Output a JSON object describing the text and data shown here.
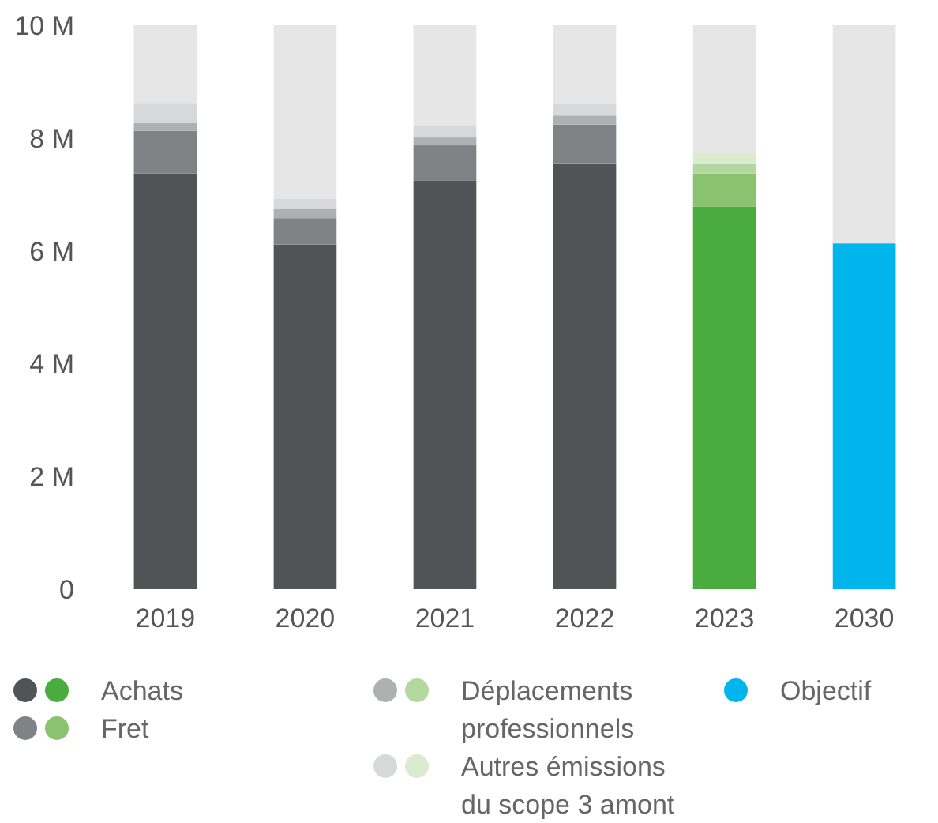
{
  "chart_data": {
    "type": "bar",
    "stacked": true,
    "categories": [
      "2019",
      "2020",
      "2021",
      "2022",
      "2023",
      "2030"
    ],
    "series": [
      {
        "name": "Achats",
        "color": "#505457",
        "colors": [
          "#505457",
          "#505457",
          "#505457",
          "#505457",
          "#4aab3f",
          null
        ],
        "values": [
          7.37,
          6.11,
          7.25,
          7.54,
          6.78,
          null
        ]
      },
      {
        "name": "Fret",
        "color": "#7f8385",
        "colors": [
          "#7f8385",
          "#7f8385",
          "#7f8385",
          "#7f8385",
          "#8bc270",
          null
        ],
        "values": [
          0.76,
          0.47,
          0.62,
          0.7,
          0.59,
          null
        ]
      },
      {
        "name": "Déplacements professionnels",
        "color": "#aeb0b2",
        "colors": [
          "#aeb0b2",
          "#aeb0b2",
          "#aeb0b2",
          "#aeb0b2",
          "#b3d89f",
          null
        ],
        "values": [
          0.14,
          0.17,
          0.14,
          0.16,
          0.17,
          null
        ]
      },
      {
        "name": "Autres émissions du scope 3 amont",
        "color": "#d7d8da",
        "colors": [
          "#d7d8da",
          "#d7d8da",
          "#d7d8da",
          "#d7d8da",
          "#dbebd0",
          null
        ],
        "values": [
          0.34,
          0.17,
          0.2,
          0.2,
          0.19,
          null
        ]
      },
      {
        "name": "Objectif",
        "color": "#00b5ec",
        "values": [
          null,
          null,
          null,
          null,
          null,
          6.13
        ]
      }
    ],
    "ylim": [
      0,
      10
    ],
    "yticks": [
      {
        "value": 0,
        "label": "0"
      },
      {
        "value": 2,
        "label": "2 M"
      },
      {
        "value": 4,
        "label": "4 M"
      },
      {
        "value": 6,
        "label": "6 M"
      },
      {
        "value": 8,
        "label": "8 M"
      },
      {
        "value": 10,
        "label": "10 M"
      }
    ],
    "grid": false,
    "legend": "bottom"
  }
}
